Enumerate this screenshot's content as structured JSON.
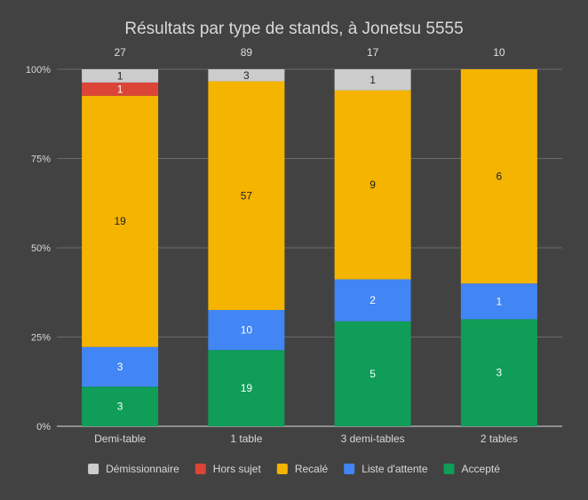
{
  "chart_data": {
    "type": "bar",
    "stacked": "percent",
    "title": "Résultats par type de stands, à Jonetsu 5555",
    "categories": [
      "Demi-table",
      "1 table",
      "3 demi-tables",
      "2 tables"
    ],
    "totals": [
      "27",
      "89",
      "17",
      "10"
    ],
    "y_ticks": [
      "0%",
      "25%",
      "50%",
      "75%",
      "100%"
    ],
    "ylim": [
      0,
      100
    ],
    "grid": true,
    "legend_position": "bottom",
    "series": [
      {
        "name": "Accepté",
        "color": "#0f9d58",
        "values": [
          3,
          19,
          5,
          3
        ]
      },
      {
        "name": "Liste d'attente",
        "color": "#4285f4",
        "values": [
          3,
          10,
          2,
          1
        ]
      },
      {
        "name": "Recalé",
        "color": "#f4b400",
        "values": [
          19,
          57,
          9,
          6
        ]
      },
      {
        "name": "Hors sujet",
        "color": "#db4437",
        "values": [
          1,
          0,
          0,
          0
        ]
      },
      {
        "name": "Démissionnaire",
        "color": "#cccccc",
        "values": [
          1,
          3,
          1,
          0
        ]
      }
    ],
    "legend_order": [
      "Démissionnaire",
      "Hors sujet",
      "Recalé",
      "Liste d'attente",
      "Accepté"
    ]
  }
}
